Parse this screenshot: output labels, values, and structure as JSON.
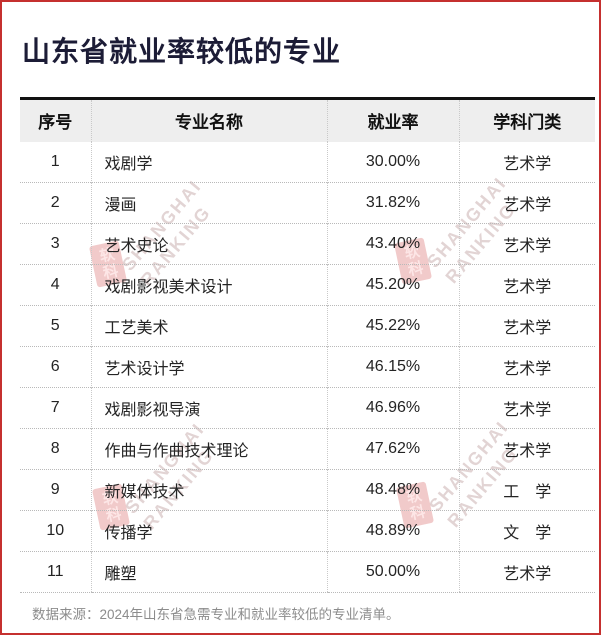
{
  "page": {
    "title": "山东省就业率较低的专业",
    "source_note": "数据来源：2024年山东省急需专业和就业率较低的专业清单。",
    "border_color": "#c5302f",
    "title_color": "#1c1c36",
    "header_bg": "#eeeeee",
    "watermark_color": "#dba0a0"
  },
  "watermark": {
    "line1": "SHANGHAI",
    "line2": "RANKING",
    "logo_text": "软科"
  },
  "table": {
    "columns": [
      {
        "key": "index",
        "label": "序号"
      },
      {
        "key": "major",
        "label": "专业名称"
      },
      {
        "key": "rate",
        "label": "就业率"
      },
      {
        "key": "category",
        "label": "学科门类"
      }
    ],
    "rows": [
      {
        "index": "1",
        "major": "戏剧学",
        "rate": "30.00%",
        "category": "艺术学"
      },
      {
        "index": "2",
        "major": "漫画",
        "rate": "31.82%",
        "category": "艺术学"
      },
      {
        "index": "3",
        "major": "艺术史论",
        "rate": "43.40%",
        "category": "艺术学"
      },
      {
        "index": "4",
        "major": "戏剧影视美术设计",
        "rate": "45.20%",
        "category": "艺术学"
      },
      {
        "index": "5",
        "major": "工艺美术",
        "rate": "45.22%",
        "category": "艺术学"
      },
      {
        "index": "6",
        "major": "艺术设计学",
        "rate": "46.15%",
        "category": "艺术学"
      },
      {
        "index": "7",
        "major": "戏剧影视导演",
        "rate": "46.96%",
        "category": "艺术学"
      },
      {
        "index": "8",
        "major": "作曲与作曲技术理论",
        "rate": "47.62%",
        "category": "艺术学"
      },
      {
        "index": "9",
        "major": "新媒体技术",
        "rate": "48.48%",
        "category": "工　学"
      },
      {
        "index": "10",
        "major": "传播学",
        "rate": "48.89%",
        "category": "文　学"
      },
      {
        "index": "11",
        "major": "雕塑",
        "rate": "50.00%",
        "category": "艺术学"
      }
    ]
  },
  "chart_data": {
    "type": "table",
    "title": "山东省就业率较低的专业",
    "columns": [
      "序号",
      "专业名称",
      "就业率",
      "学科门类"
    ],
    "rows": [
      [
        1,
        "戏剧学",
        "30.00%",
        "艺术学"
      ],
      [
        2,
        "漫画",
        "31.82%",
        "艺术学"
      ],
      [
        3,
        "艺术史论",
        "43.40%",
        "艺术学"
      ],
      [
        4,
        "戏剧影视美术设计",
        "45.20%",
        "艺术学"
      ],
      [
        5,
        "工艺美术",
        "45.22%",
        "艺术学"
      ],
      [
        6,
        "艺术设计学",
        "46.15%",
        "艺术学"
      ],
      [
        7,
        "戏剧影视导演",
        "46.96%",
        "艺术学"
      ],
      [
        8,
        "作曲与作曲技术理论",
        "47.62%",
        "艺术学"
      ],
      [
        9,
        "新媒体技术",
        "48.48%",
        "工　学"
      ],
      [
        10,
        "传播学",
        "48.89%",
        "文　学"
      ],
      [
        11,
        "雕塑",
        "50.00%",
        "艺术学"
      ]
    ],
    "employment_rates_percent": [
      30.0,
      31.82,
      43.4,
      45.2,
      45.22,
      46.15,
      46.96,
      47.62,
      48.48,
      48.89,
      50.0
    ],
    "source": "数据来源：2024年山东省急需专业和就业率较低的专业清单。"
  }
}
